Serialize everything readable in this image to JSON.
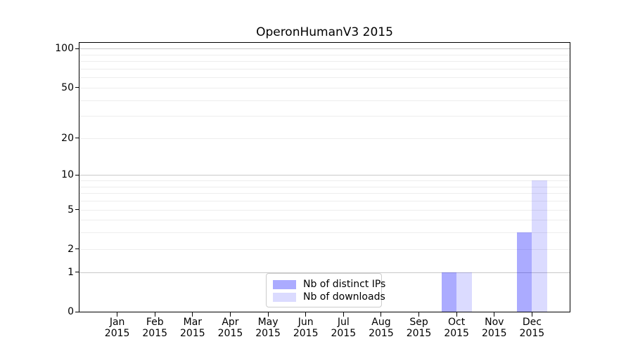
{
  "chart_data": {
    "type": "bar",
    "title": "OperonHumanV3 2015",
    "categories": [
      "Jan",
      "Feb",
      "Mar",
      "Apr",
      "May",
      "Jun",
      "Jul",
      "Aug",
      "Sep",
      "Oct",
      "Nov",
      "Dec"
    ],
    "category_year": "2015",
    "series": [
      {
        "name": "Nb of distinct IPs",
        "color": "rgba(0,0,255,0.33)",
        "values": [
          0,
          0,
          0,
          0,
          0,
          0,
          0,
          0,
          0,
          1,
          0,
          3
        ]
      },
      {
        "name": "Nb of downloads",
        "color": "rgba(0,0,255,0.14)",
        "values": [
          0,
          0,
          0,
          0,
          0,
          0,
          0,
          0,
          0,
          1,
          0,
          9
        ]
      }
    ],
    "y_axis": {
      "scale": "log1p",
      "tick_values": [
        0,
        1,
        2,
        5,
        10,
        20,
        50,
        100
      ],
      "tick_labels": [
        "0",
        "1",
        "2",
        "5",
        "10",
        "20",
        "50",
        "100"
      ],
      "display_max": 111,
      "major_gridlines": [
        1,
        10,
        100
      ],
      "minor_gridlines": [
        2,
        3,
        4,
        5,
        6,
        7,
        8,
        9,
        20,
        30,
        40,
        50,
        60,
        70,
        80,
        90
      ]
    },
    "xlabel": "",
    "ylabel": "",
    "grid": true,
    "legend_position": "lower center"
  },
  "colors": {
    "background": "#ffffff",
    "spine": "#000000",
    "text": "#000000",
    "major_grid": "#c9c9c9",
    "minor_grid": "#ededed",
    "legend_border": "#cccccc"
  }
}
